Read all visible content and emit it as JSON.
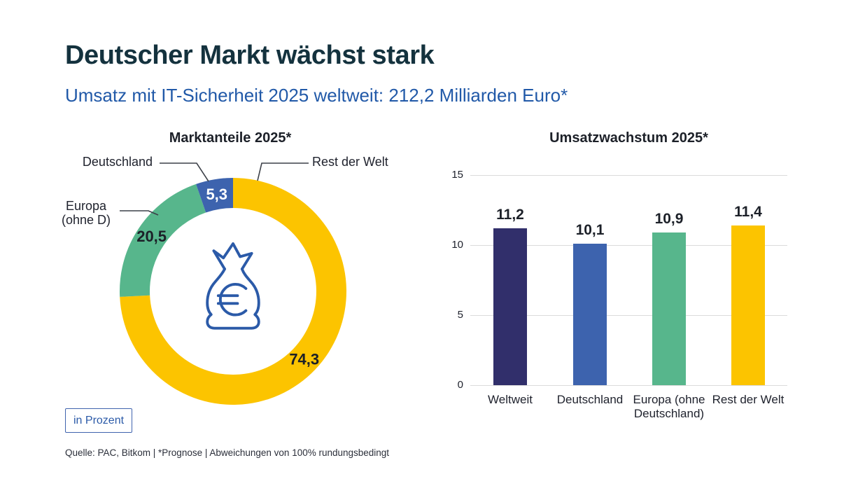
{
  "page": {
    "title": "Deutscher Markt wächst stark",
    "subtitle": "Umsatz mit IT-Sicherheit 2025 weltweit: 212,2 Milliarden Euro*",
    "unit_badge": "in Prozent",
    "footnote": "Quelle: PAC, Bitkom | *Prognose | Abweichungen von 100% rundungsbedingt"
  },
  "colors": {
    "heading": "#14323E",
    "subtitle_blue": "#2159A8",
    "text_dark": "#20232E",
    "gridline": "#DBDBDB",
    "callout_line": "#3C4048",
    "icon_stroke": "#2B5AA8",
    "navy": "#312F6B",
    "blue": "#3D63AE",
    "green": "#57B68C",
    "yellow": "#FCC400"
  },
  "chart_data": [
    {
      "type": "pie",
      "donut": true,
      "title": "Marktanteile 2025*",
      "unit": "in Prozent",
      "labels": [
        "Rest der Welt",
        "Europa (ohne D)",
        "Deutschland"
      ],
      "values": [
        74.3,
        20.5,
        5.3
      ],
      "display_values": [
        "74,3",
        "20,5",
        "5,3"
      ],
      "colors": [
        "#FCC400",
        "#57B68C",
        "#3D63AE"
      ],
      "value_label_colors": [
        "#1C2028",
        "#1C2028",
        "#FFFFFF"
      ],
      "start_angle_deg": 0,
      "clockwise": true,
      "center_icon": "money-bag-euro-icon"
    },
    {
      "type": "bar",
      "title": "Umsatzwachstum 2025*",
      "unit": "in Prozent",
      "categories": [
        "Weltweit",
        "Deutschland",
        "Europa (ohne Deutschland)",
        "Rest der Welt"
      ],
      "values": [
        11.2,
        10.1,
        10.9,
        11.4
      ],
      "display_values": [
        "11,2",
        "10,1",
        "10,9",
        "11,4"
      ],
      "colors": [
        "#312F6B",
        "#3D63AE",
        "#57B68C",
        "#FCC400"
      ],
      "ylim": [
        0,
        15
      ],
      "yticks": [
        0,
        5,
        10,
        15
      ],
      "grid": true,
      "legend": false
    }
  ]
}
